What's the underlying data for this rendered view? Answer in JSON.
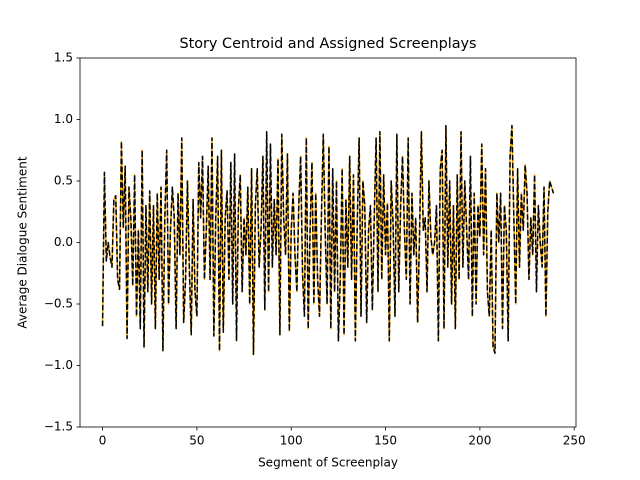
{
  "chart_data": {
    "type": "line",
    "title": "Story Centroid and Assigned Screenplays",
    "x_label": "Segment of Screenplay",
    "y_label": "Average Dialogue Sentiment",
    "x": [
      0,
      1,
      2,
      3,
      4,
      5,
      6,
      7,
      8,
      9,
      10,
      11,
      12,
      13,
      14,
      15,
      16,
      17,
      18,
      19,
      20,
      21,
      22,
      23,
      24,
      25,
      26,
      27,
      28,
      29,
      30,
      31,
      32,
      33,
      34,
      35,
      36,
      37,
      38,
      39,
      40,
      41,
      42,
      43,
      44,
      45,
      46,
      47,
      48,
      49,
      50,
      51,
      52,
      53,
      54,
      55,
      56,
      57,
      58,
      59,
      60,
      61,
      62,
      63,
      64,
      65,
      66,
      67,
      68,
      69,
      70,
      71,
      72,
      73,
      74,
      75,
      76,
      77,
      78,
      79,
      80,
      81,
      82,
      83,
      84,
      85,
      86,
      87,
      88,
      89,
      90,
      91,
      92,
      93,
      94,
      95,
      96,
      97,
      98,
      99,
      100,
      101,
      102,
      103,
      104,
      105,
      106,
      107,
      108,
      109,
      110,
      111,
      112,
      113,
      114,
      115,
      116,
      117,
      118,
      119,
      120,
      121,
      122,
      123,
      124,
      125,
      126,
      127,
      128,
      129,
      130,
      131,
      132,
      133,
      134,
      135,
      136,
      137,
      138,
      139,
      140,
      141,
      142,
      143,
      144,
      145,
      146,
      147,
      148,
      149,
      150,
      151,
      152,
      153,
      154,
      155,
      156,
      157,
      158,
      159,
      160,
      161,
      162,
      163,
      164,
      165,
      166,
      167,
      168,
      169,
      170,
      171,
      172,
      173,
      174,
      175,
      176,
      177,
      178,
      179,
      180,
      181,
      182,
      183,
      184,
      185,
      186,
      187,
      188,
      189,
      190,
      191,
      192,
      193,
      194,
      195,
      196,
      197,
      198,
      199,
      200,
      201,
      202,
      203,
      204,
      205,
      206,
      207,
      208,
      209,
      210,
      211,
      212,
      213,
      214,
      215,
      216,
      217,
      218,
      219,
      220,
      221,
      222,
      223,
      224,
      225,
      226,
      227,
      228,
      229,
      230,
      231,
      232,
      233,
      234,
      235,
      236,
      237,
      238,
      239
    ],
    "series": [
      {
        "color": "#ffa500",
        "dashed": false,
        "values": [
          -0.68,
          0.57,
          -0.15,
          0.0,
          -0.12,
          -0.2,
          0.35,
          0.38,
          -0.3,
          -0.38,
          0.82,
          0.12,
          0.62,
          -0.78,
          0.45,
          0.2,
          -0.35,
          0.55,
          -0.6,
          0.1,
          -0.7,
          0.75,
          -0.85,
          0.3,
          -0.4,
          0.42,
          -0.5,
          0.3,
          -0.7,
          0.4,
          -0.3,
          0.45,
          -0.88,
          0.2,
          0.75,
          -0.5,
          0.1,
          0.45,
          0.2,
          -0.7,
          0.4,
          -0.1,
          0.85,
          -0.65,
          -0.3,
          0.5,
          -0.2,
          -0.75,
          0.35,
          -0.4,
          -0.6,
          0.65,
          0.2,
          0.7,
          -0.3,
          0.1,
          0.62,
          -0.3,
          0.85,
          -0.76,
          0.2,
          0.7,
          -0.88,
          0.75,
          -0.73,
          0.2,
          0.42,
          -0.3,
          0.65,
          -0.5,
          0.72,
          -0.8,
          0.28,
          0.55,
          -0.4,
          0.2,
          -0.1,
          0.45,
          -0.5,
          0.6,
          -0.91,
          0.3,
          0.6,
          -0.2,
          0.1,
          0.7,
          -0.55,
          0.9,
          -0.4,
          0.8,
          -0.2,
          0.35,
          -0.1,
          0.68,
          -0.75,
          0.88,
          0.2,
          -0.1,
          0.72,
          -0.72,
          0.1,
          0.4,
          -0.1,
          -0.4,
          0.3,
          0.7,
          -0.25,
          -0.6,
          0.85,
          -0.7,
          0.1,
          0.65,
          -0.5,
          0.4,
          -0.3,
          -0.6,
          0.2,
          0.88,
          0.1,
          -0.5,
          0.78,
          -0.7,
          0.6,
          -0.4,
          0.5,
          -0.8,
          -0.3,
          0.6,
          -0.75,
          0.35,
          -0.2,
          0.7,
          -0.3,
          0.55,
          -0.8,
          0.15,
          0.85,
          -0.6,
          0.5,
          0.3,
          -0.65,
          0.1,
          0.3,
          -0.55,
          0.2,
          0.85,
          -0.4,
          0.9,
          -0.3,
          0.55,
          -0.1,
          0.32,
          -0.8,
          0.5,
          0.15,
          -0.6,
          0.88,
          -0.4,
          0.3,
          0.7,
          0.1,
          -0.3,
          0.85,
          -0.5,
          0.4,
          -0.1,
          0.2,
          -0.65,
          0.05,
          0.9,
          0.1,
          0.2,
          -0.4,
          0.5,
          0.05,
          -0.1,
          0.0,
          0.3,
          -0.8,
          0.6,
          0.75,
          -0.7,
          0.95,
          -0.2,
          0.5,
          -0.5,
          0.3,
          -0.7,
          0.55,
          -0.3,
          0.9,
          -0.2,
          0.5,
          0.1,
          -0.3,
          0.7,
          -0.6,
          0.4,
          -0.5,
          0.3,
          0.05,
          0.8,
          -0.1,
          0.6,
          -0.4,
          -0.6,
          0.1,
          -0.85,
          -0.9,
          0.4,
          0.0,
          0.4,
          -0.7,
          0.3,
          0.1,
          -0.8,
          0.7,
          0.95,
          0.2,
          -0.5,
          0.6,
          -0.2,
          0.4,
          0.1,
          0.63,
          0.4,
          -0.3,
          0.2,
          -0.1,
          0.55,
          -0.4,
          0.3,
          0.0,
          -0.2,
          0.45,
          -0.6,
          0.25,
          0.5,
          0.45,
          0.4
        ]
      },
      {
        "color": "#000000",
        "dashed": true,
        "values": [
          -0.68,
          0.57,
          -0.15,
          0.0,
          -0.12,
          -0.2,
          0.35,
          0.38,
          -0.3,
          -0.38,
          0.82,
          0.12,
          0.62,
          -0.78,
          0.45,
          0.2,
          -0.35,
          0.55,
          -0.6,
          0.1,
          -0.7,
          0.75,
          -0.85,
          0.3,
          -0.4,
          0.42,
          -0.5,
          0.3,
          -0.7,
          0.4,
          -0.3,
          0.45,
          -0.88,
          0.2,
          0.75,
          -0.5,
          0.1,
          0.45,
          0.2,
          -0.7,
          0.4,
          -0.1,
          0.85,
          -0.65,
          -0.3,
          0.5,
          -0.2,
          -0.75,
          0.35,
          -0.4,
          -0.6,
          0.65,
          0.2,
          0.7,
          -0.3,
          0.1,
          0.62,
          -0.3,
          0.85,
          -0.76,
          0.2,
          0.7,
          -0.88,
          0.75,
          -0.73,
          0.2,
          0.42,
          -0.3,
          0.65,
          -0.5,
          0.72,
          -0.8,
          0.28,
          0.55,
          -0.4,
          0.2,
          -0.1,
          0.45,
          -0.5,
          0.6,
          -0.91,
          0.3,
          0.6,
          -0.2,
          0.1,
          0.7,
          -0.55,
          0.9,
          -0.4,
          0.8,
          -0.2,
          0.35,
          -0.1,
          0.68,
          -0.75,
          0.88,
          0.2,
          -0.1,
          0.72,
          -0.72,
          0.1,
          0.4,
          -0.1,
          -0.4,
          0.3,
          0.7,
          -0.25,
          -0.6,
          0.85,
          -0.7,
          0.1,
          0.65,
          -0.5,
          0.4,
          -0.3,
          -0.6,
          0.2,
          0.88,
          0.1,
          -0.5,
          0.78,
          -0.7,
          0.6,
          -0.4,
          0.5,
          -0.8,
          -0.3,
          0.6,
          -0.75,
          0.35,
          -0.2,
          0.7,
          -0.3,
          0.55,
          -0.8,
          0.15,
          0.85,
          -0.6,
          0.5,
          0.3,
          -0.65,
          0.1,
          0.3,
          -0.55,
          0.2,
          0.85,
          -0.4,
          0.9,
          -0.3,
          0.55,
          -0.1,
          0.32,
          -0.8,
          0.5,
          0.15,
          -0.6,
          0.88,
          -0.4,
          0.3,
          0.7,
          0.1,
          -0.3,
          0.85,
          -0.5,
          0.4,
          -0.1,
          0.2,
          -0.65,
          0.05,
          0.9,
          0.1,
          0.2,
          -0.4,
          0.5,
          0.05,
          -0.1,
          0.0,
          0.3,
          -0.8,
          0.6,
          0.75,
          -0.7,
          0.95,
          -0.2,
          0.5,
          -0.5,
          0.3,
          -0.7,
          0.55,
          -0.3,
          0.9,
          -0.2,
          0.5,
          0.1,
          -0.3,
          0.7,
          -0.6,
          0.4,
          -0.5,
          0.3,
          0.05,
          0.8,
          -0.1,
          0.6,
          -0.4,
          -0.6,
          0.1,
          -0.85,
          -0.9,
          0.4,
          0.0,
          0.4,
          -0.7,
          0.3,
          0.1,
          -0.8,
          0.7,
          0.95,
          0.2,
          -0.5,
          0.6,
          -0.2,
          0.4,
          0.1,
          0.63,
          0.4,
          -0.3,
          0.2,
          -0.1,
          0.55,
          -0.4,
          0.3,
          0.0,
          -0.2,
          0.45,
          -0.6,
          0.25,
          0.5,
          0.45,
          0.4
        ]
      }
    ],
    "xlim": [
      -11.95,
      250.95
    ],
    "xticks": [
      0,
      50,
      100,
      150,
      200,
      250
    ],
    "ylim": [
      -1.5,
      1.5
    ],
    "yticks": [
      {
        "value": -1.5,
        "label": "−1.5"
      },
      {
        "value": -1.0,
        "label": "−1.0"
      },
      {
        "value": -0.5,
        "label": "−0.5"
      },
      {
        "value": 0.0,
        "label": "0.0"
      },
      0.5,
      {
        "value": 1.0,
        "label": "1.0"
      },
      1.5
    ]
  }
}
